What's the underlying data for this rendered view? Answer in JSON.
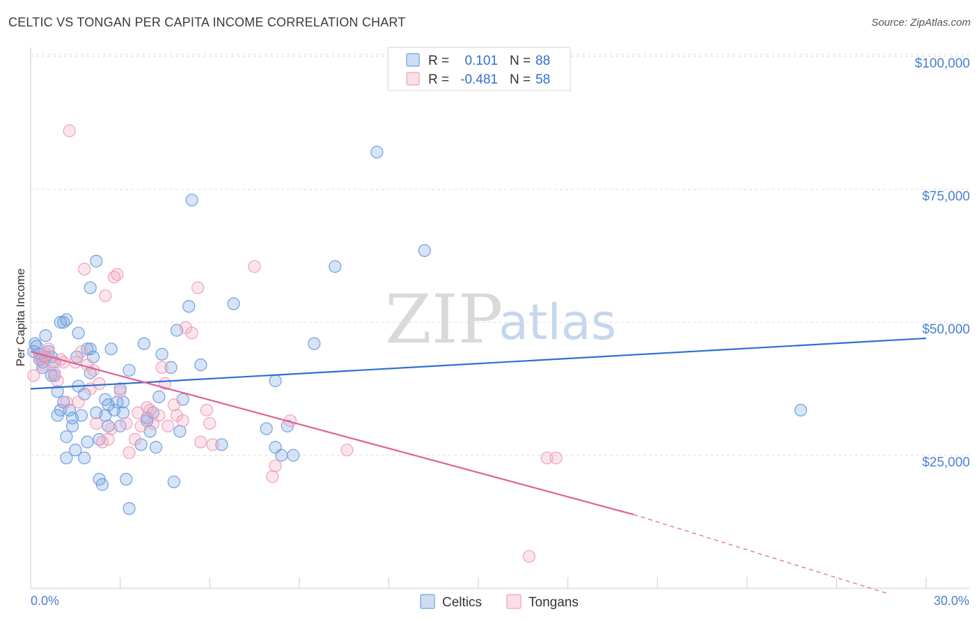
{
  "header": {
    "title": "CELTIC VS TONGAN PER CAPITA INCOME CORRELATION CHART",
    "source": "Source: ZipAtlas.com"
  },
  "watermark": {
    "zip": "ZIP",
    "atlas": "atlas"
  },
  "legend": {
    "r_label": "R =",
    "n_label": "N =",
    "rows": [
      {
        "name": "Celtics",
        "r": "0.101",
        "n": "88",
        "color": "#6f9fe0"
      },
      {
        "name": "Tongans",
        "r": "-0.481",
        "n": "58",
        "color": "#f0a0bc"
      }
    ]
  },
  "chart_data": {
    "type": "scatter",
    "title": "CELTIC VS TONGAN PER CAPITA INCOME CORRELATION CHART",
    "xlabel": "",
    "ylabel": "Per Capita Income",
    "xlim": [
      0,
      30
    ],
    "ylim": [
      0,
      105000
    ],
    "y_ticks": [
      {
        "value": 25000,
        "label": "$25,000"
      },
      {
        "value": 50000,
        "label": "$50,000"
      },
      {
        "value": 75000,
        "label": "$75,000"
      },
      {
        "value": 100000,
        "label": "$100,000"
      }
    ],
    "x_tick_labels": [
      {
        "value": 0,
        "label": "0.0%"
      },
      {
        "value": 30,
        "label": "30.0%"
      }
    ],
    "grid": true,
    "legend_position": "top-center",
    "series": [
      {
        "name": "Celtics",
        "color": "#6f9fe0",
        "trend": {
          "x0": 0,
          "y0": 37500,
          "x1": 30,
          "y1": 47000,
          "solid_until": 30
        },
        "points": [
          [
            0.1,
            44500
          ],
          [
            0.2,
            45500
          ],
          [
            0.3,
            44000
          ],
          [
            0.3,
            43000
          ],
          [
            0.4,
            42500
          ],
          [
            0.4,
            41500
          ],
          [
            0.5,
            43500
          ],
          [
            0.5,
            47500
          ],
          [
            0.6,
            44500
          ],
          [
            0.7,
            43500
          ],
          [
            0.7,
            40000
          ],
          [
            0.8,
            40000
          ],
          [
            0.8,
            42500
          ],
          [
            0.9,
            37000
          ],
          [
            0.9,
            32500
          ],
          [
            1.0,
            50000
          ],
          [
            1.0,
            33500
          ],
          [
            1.1,
            35000
          ],
          [
            1.1,
            50000
          ],
          [
            1.2,
            50500
          ],
          [
            1.2,
            28500
          ],
          [
            1.2,
            24500
          ],
          [
            1.3,
            33500
          ],
          [
            1.4,
            32000
          ],
          [
            1.4,
            30500
          ],
          [
            1.5,
            26000
          ],
          [
            1.6,
            38000
          ],
          [
            1.6,
            48000
          ],
          [
            1.7,
            32500
          ],
          [
            1.8,
            36500
          ],
          [
            1.8,
            24500
          ],
          [
            1.9,
            27500
          ],
          [
            1.9,
            45000
          ],
          [
            2.0,
            45000
          ],
          [
            2.0,
            40500
          ],
          [
            2.0,
            56500
          ],
          [
            2.1,
            43500
          ],
          [
            2.2,
            61500
          ],
          [
            2.2,
            33000
          ],
          [
            2.3,
            28000
          ],
          [
            2.3,
            20500
          ],
          [
            2.4,
            19500
          ],
          [
            2.5,
            35500
          ],
          [
            2.5,
            32500
          ],
          [
            2.6,
            30500
          ],
          [
            2.6,
            34500
          ],
          [
            2.7,
            45000
          ],
          [
            2.8,
            33500
          ],
          [
            2.9,
            35000
          ],
          [
            3.0,
            37500
          ],
          [
            3.0,
            30500
          ],
          [
            3.1,
            33000
          ],
          [
            3.1,
            35000
          ],
          [
            3.2,
            20500
          ],
          [
            3.3,
            41000
          ],
          [
            3.3,
            15000
          ],
          [
            3.7,
            27000
          ],
          [
            3.8,
            46000
          ],
          [
            3.9,
            32000
          ],
          [
            3.9,
            31500
          ],
          [
            4.0,
            29500
          ],
          [
            4.1,
            33000
          ],
          [
            4.2,
            26500
          ],
          [
            4.3,
            36000
          ],
          [
            4.4,
            44000
          ],
          [
            4.7,
            41500
          ],
          [
            4.8,
            20000
          ],
          [
            4.9,
            48500
          ],
          [
            5.0,
            29500
          ],
          [
            5.1,
            35500
          ],
          [
            5.3,
            53000
          ],
          [
            5.4,
            73000
          ],
          [
            5.7,
            42000
          ],
          [
            6.4,
            27000
          ],
          [
            6.8,
            53500
          ],
          [
            7.9,
            30000
          ],
          [
            8.2,
            26500
          ],
          [
            8.2,
            39000
          ],
          [
            8.4,
            25000
          ],
          [
            8.6,
            30500
          ],
          [
            8.8,
            25000
          ],
          [
            9.5,
            46000
          ],
          [
            10.2,
            60500
          ],
          [
            11.6,
            82000
          ],
          [
            13.2,
            63500
          ],
          [
            25.8,
            33500
          ],
          [
            0.15,
            46000
          ],
          [
            1.55,
            43500
          ]
        ]
      },
      {
        "name": "Tongans",
        "color": "#f0a0bc",
        "trend": {
          "x0": 0,
          "y0": 44500,
          "x1": 30,
          "y1": -1000,
          "solid_until": 20.2
        },
        "points": [
          [
            0.1,
            40000
          ],
          [
            0.3,
            43500
          ],
          [
            0.5,
            44000
          ],
          [
            0.6,
            45000
          ],
          [
            0.7,
            42500
          ],
          [
            0.8,
            40500
          ],
          [
            0.9,
            39000
          ],
          [
            1.0,
            43000
          ],
          [
            1.1,
            42500
          ],
          [
            1.2,
            35000
          ],
          [
            1.3,
            86000
          ],
          [
            1.5,
            42500
          ],
          [
            1.6,
            35000
          ],
          [
            1.7,
            44500
          ],
          [
            1.8,
            60000
          ],
          [
            1.9,
            42000
          ],
          [
            2.0,
            37500
          ],
          [
            2.1,
            41000
          ],
          [
            2.2,
            31000
          ],
          [
            2.4,
            27500
          ],
          [
            2.5,
            55000
          ],
          [
            2.6,
            28000
          ],
          [
            2.7,
            30000
          ],
          [
            2.8,
            58500
          ],
          [
            2.9,
            59000
          ],
          [
            3.0,
            37000
          ],
          [
            3.2,
            31000
          ],
          [
            3.3,
            25500
          ],
          [
            3.5,
            28000
          ],
          [
            3.6,
            33000
          ],
          [
            3.7,
            30500
          ],
          [
            3.9,
            34000
          ],
          [
            4.0,
            33500
          ],
          [
            4.1,
            31000
          ],
          [
            4.3,
            32500
          ],
          [
            4.4,
            41500
          ],
          [
            4.5,
            38500
          ],
          [
            4.6,
            30500
          ],
          [
            4.8,
            34500
          ],
          [
            4.9,
            32500
          ],
          [
            5.1,
            31500
          ],
          [
            5.2,
            49000
          ],
          [
            5.4,
            48000
          ],
          [
            5.6,
            56500
          ],
          [
            5.7,
            27500
          ],
          [
            5.9,
            33500
          ],
          [
            6.0,
            31000
          ],
          [
            6.1,
            27000
          ],
          [
            7.5,
            60500
          ],
          [
            8.1,
            21000
          ],
          [
            8.2,
            23000
          ],
          [
            8.7,
            31500
          ],
          [
            10.6,
            26000
          ],
          [
            16.7,
            6000
          ],
          [
            17.3,
            24500
          ],
          [
            17.6,
            24500
          ],
          [
            0.4,
            42000
          ],
          [
            2.3,
            38500
          ]
        ]
      }
    ]
  }
}
